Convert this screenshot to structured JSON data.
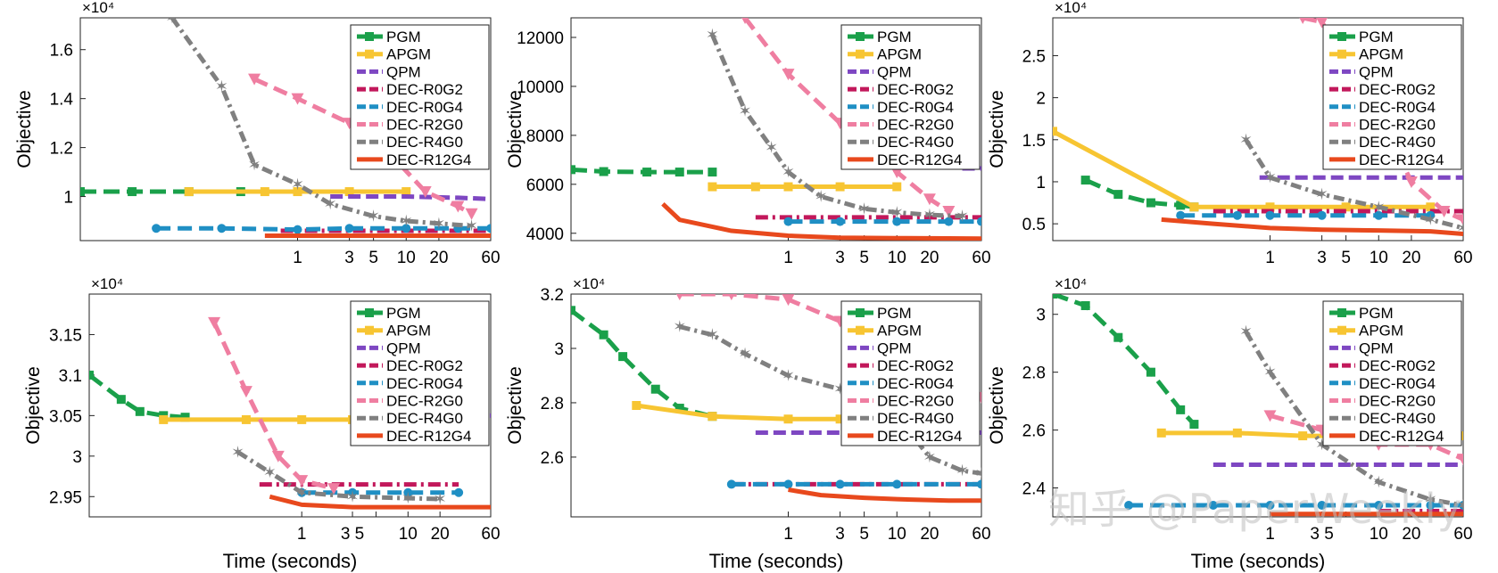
{
  "figure": {
    "watermark": "知乎 @PaperWeekly",
    "legend_entries": [
      "PGM",
      "APGM",
      "QPM",
      "DEC-R0G2",
      "DEC-R0G4",
      "DEC-R2G0",
      "DEC-R4G0",
      "DEC-R12G4"
    ],
    "colors": {
      "PGM": "#1aa04a",
      "APGM": "#f7c532",
      "QPM": "#7e47c2",
      "DEC-R0G2": "#c2185b",
      "DEC-R0G4": "#1f8fc4",
      "DEC-R2G0": "#ef7ea1",
      "DEC-R4G0": "#808080",
      "DEC-R12G4": "#e8491d"
    }
  },
  "chart_data": [
    {
      "type": "line",
      "ylabel": "Objective",
      "xlabel": "",
      "exponent": "×10⁴",
      "xscale": "log",
      "xlim": [
        0.01,
        60
      ],
      "ylim": [
        0.82,
        1.73
      ],
      "yticks": [
        1,
        1.2,
        1.4,
        1.6
      ],
      "xticks": [
        1,
        3,
        5,
        10,
        20,
        60
      ],
      "xtick_labels": [
        "1",
        "3",
        "5",
        "10",
        "20",
        "60"
      ],
      "legend": "top-right",
      "series": [
        {
          "name": "PGM",
          "x": [
            0.01,
            0.03,
            0.1,
            0.3
          ],
          "y": [
            1.02,
            1.02,
            1.02,
            1.02
          ]
        },
        {
          "name": "APGM",
          "x": [
            0.1,
            0.5,
            1,
            3,
            10
          ],
          "y": [
            1.02,
            1.02,
            1.02,
            1.02,
            1.02
          ]
        },
        {
          "name": "QPM",
          "x": [
            2,
            5,
            10,
            30,
            60
          ],
          "y": [
            1.0,
            1.0,
            1.0,
            0.995,
            0.99
          ]
        },
        {
          "name": "DEC-R0G2",
          "x": [
            0.7,
            2,
            5,
            10,
            30,
            60
          ],
          "y": [
            0.86,
            0.86,
            0.86,
            0.86,
            0.86,
            0.86
          ]
        },
        {
          "name": "DEC-R0G4",
          "x": [
            0.05,
            0.2,
            1,
            3,
            10,
            30,
            60
          ],
          "y": [
            0.87,
            0.87,
            0.865,
            0.87,
            0.87,
            0.87,
            0.87
          ]
        },
        {
          "name": "DEC-R2G0",
          "x": [
            0.4,
            1,
            3,
            8,
            15,
            30,
            40
          ],
          "y": [
            1.48,
            1.4,
            1.3,
            1.15,
            1.02,
            0.96,
            0.93
          ]
        },
        {
          "name": "DEC-R4G0",
          "x": [
            0.07,
            0.2,
            0.4,
            1,
            2,
            5,
            10,
            20,
            40
          ],
          "y": [
            1.73,
            1.45,
            1.13,
            1.05,
            0.97,
            0.92,
            0.9,
            0.89,
            0.88
          ]
        },
        {
          "name": "DEC-R12G4",
          "x": [
            0.5,
            1,
            3,
            10,
            30,
            60
          ],
          "y": [
            0.84,
            0.84,
            0.84,
            0.84,
            0.84,
            0.84
          ]
        }
      ]
    },
    {
      "type": "line",
      "ylabel": "Objective",
      "xlabel": "",
      "exponent": "",
      "xscale": "log",
      "xlim": [
        0.01,
        60
      ],
      "ylim": [
        3700,
        12800
      ],
      "yticks": [
        4000,
        6000,
        8000,
        10000,
        12000
      ],
      "xticks": [
        1,
        3,
        5,
        10,
        20,
        60
      ],
      "xtick_labels": [
        "1",
        "3",
        "5",
        "10",
        "20",
        "60"
      ],
      "legend": "top-right",
      "series": [
        {
          "name": "PGM",
          "x": [
            0.01,
            0.02,
            0.05,
            0.1,
            0.2
          ],
          "y": [
            6600,
            6520,
            6500,
            6500,
            6500
          ]
        },
        {
          "name": "APGM",
          "x": [
            0.2,
            0.5,
            1,
            3,
            10
          ],
          "y": [
            5900,
            5900,
            5900,
            5900,
            5900
          ]
        },
        {
          "name": "QPM",
          "x": [
            40,
            60
          ],
          "y": [
            6650,
            6650
          ]
        },
        {
          "name": "DEC-R0G2",
          "x": [
            0.5,
            1,
            3,
            10,
            30,
            60
          ],
          "y": [
            4650,
            4650,
            4650,
            4650,
            4650,
            4650
          ]
        },
        {
          "name": "DEC-R0G4",
          "x": [
            1,
            3,
            10,
            30,
            60
          ],
          "y": [
            4480,
            4480,
            4480,
            4480,
            4480
          ]
        },
        {
          "name": "DEC-R2G0",
          "x": [
            0.4,
            1,
            3,
            10,
            20,
            30
          ],
          "y": [
            12800,
            10500,
            8500,
            6500,
            5400,
            4900
          ]
        },
        {
          "name": "DEC-R4G0",
          "x": [
            0.2,
            0.4,
            0.7,
            1,
            2,
            5,
            10,
            20,
            40
          ],
          "y": [
            12100,
            9000,
            7500,
            6500,
            5500,
            5000,
            4850,
            4750,
            4700
          ]
        },
        {
          "name": "DEC-R12G4",
          "x": [
            0.07,
            0.1,
            0.3,
            1,
            3,
            10,
            30,
            60
          ],
          "y": [
            5200,
            4550,
            4100,
            3900,
            3820,
            3800,
            3790,
            3780
          ]
        }
      ]
    },
    {
      "type": "line",
      "ylabel": "Objective",
      "xlabel": "",
      "exponent": "×10⁴",
      "xscale": "log",
      "xlim": [
        0.01,
        60
      ],
      "ylim": [
        0.3,
        2.95
      ],
      "yticks": [
        0.5,
        1,
        1.5,
        2,
        2.5
      ],
      "xticks": [
        1,
        3,
        5,
        10,
        20,
        60
      ],
      "xtick_labels": [
        "1",
        "3",
        "5",
        "10",
        "20",
        "60"
      ],
      "legend": "top-right",
      "series": [
        {
          "name": "PGM",
          "x": [
            0.02,
            0.04,
            0.08,
            0.15,
            0.2
          ],
          "y": [
            1.02,
            0.85,
            0.75,
            0.72,
            0.7
          ]
        },
        {
          "name": "APGM",
          "x": [
            0.01,
            0.2,
            1,
            5,
            30
          ],
          "y": [
            1.6,
            0.7,
            0.7,
            0.7,
            0.7
          ]
        },
        {
          "name": "QPM",
          "x": [
            0.8,
            3,
            10,
            30,
            60
          ],
          "y": [
            1.05,
            1.05,
            1.05,
            1.05,
            1.05
          ]
        },
        {
          "name": "DEC-R0G2",
          "x": [
            0.3,
            1,
            3,
            10,
            30,
            60
          ],
          "y": [
            0.65,
            0.65,
            0.65,
            0.65,
            0.65,
            0.65
          ]
        },
        {
          "name": "DEC-R0G4",
          "x": [
            0.15,
            0.5,
            1,
            3,
            10,
            30
          ],
          "y": [
            0.6,
            0.6,
            0.6,
            0.6,
            0.6,
            0.6
          ]
        },
        {
          "name": "DEC-R2G0",
          "x": [
            2,
            3,
            10,
            20,
            40,
            60
          ],
          "y": [
            2.95,
            2.9,
            1.8,
            1.0,
            0.65,
            0.55
          ]
        },
        {
          "name": "DEC-R4G0",
          "x": [
            0.6,
            1,
            3,
            10,
            30,
            60
          ],
          "y": [
            1.5,
            1.05,
            0.85,
            0.7,
            0.55,
            0.45
          ]
        },
        {
          "name": "DEC-R12G4",
          "x": [
            0.1,
            0.3,
            1,
            3,
            10,
            30,
            60
          ],
          "y": [
            0.55,
            0.5,
            0.45,
            0.43,
            0.42,
            0.41,
            0.38
          ]
        }
      ]
    },
    {
      "type": "line",
      "ylabel": "Objective",
      "xlabel": "Time (seconds)",
      "exponent": "×10⁴",
      "xscale": "log",
      "xlim": [
        0.01,
        60
      ],
      "ylim": [
        2.925,
        3.2
      ],
      "yticks": [
        2.95,
        3,
        3.05,
        3.1,
        3.15
      ],
      "xticks": [
        1,
        3,
        5,
        10,
        20,
        60
      ],
      "xtick_labels": [
        "1",
        "3 5",
        "",
        "10",
        "20",
        "60"
      ],
      "legend": "top-right",
      "series": [
        {
          "name": "PGM",
          "x": [
            0.01,
            0.02,
            0.03,
            0.05,
            0.08
          ],
          "y": [
            3.1,
            3.07,
            3.055,
            3.05,
            3.048
          ]
        },
        {
          "name": "APGM",
          "x": [
            0.05,
            0.3,
            1,
            3,
            10
          ],
          "y": [
            3.045,
            3.045,
            3.045,
            3.045,
            3.045
          ]
        },
        {
          "name": "QPM",
          "x": [
            40,
            60
          ],
          "y": [
            3.05,
            3.05
          ]
        },
        {
          "name": "DEC-R0G2",
          "x": [
            0.4,
            1,
            3,
            10,
            30
          ],
          "y": [
            2.965,
            2.965,
            2.965,
            2.965,
            2.965
          ]
        },
        {
          "name": "DEC-R0G4",
          "x": [
            1,
            3,
            10,
            30
          ],
          "y": [
            2.955,
            2.955,
            2.955,
            2.955
          ]
        },
        {
          "name": "DEC-R2G0",
          "x": [
            0.15,
            0.3,
            0.6,
            1,
            2
          ],
          "y": [
            3.165,
            3.08,
            3.0,
            2.97,
            2.96
          ]
        },
        {
          "name": "DEC-R4G0",
          "x": [
            0.25,
            0.5,
            1,
            3,
            10,
            20
          ],
          "y": [
            3.005,
            2.98,
            2.955,
            2.95,
            2.948,
            2.947
          ]
        },
        {
          "name": "DEC-R12G4",
          "x": [
            0.5,
            1,
            3,
            10,
            30,
            60
          ],
          "y": [
            2.95,
            2.94,
            2.937,
            2.937,
            2.937,
            2.937
          ]
        }
      ]
    },
    {
      "type": "line",
      "ylabel": "Objective",
      "xlabel": "Time (seconds)",
      "exponent": "×10⁴",
      "xscale": "log",
      "xlim": [
        0.01,
        60
      ],
      "ylim": [
        2.38,
        3.2
      ],
      "yticks": [
        2.6,
        2.8,
        3,
        3.2
      ],
      "xticks": [
        1,
        3,
        5,
        10,
        20,
        60
      ],
      "xtick_labels": [
        "1",
        "3",
        "5",
        "10",
        "20",
        "60"
      ],
      "legend": "top-right",
      "series": [
        {
          "name": "PGM",
          "x": [
            0.01,
            0.02,
            0.03,
            0.06,
            0.1,
            0.2
          ],
          "y": [
            3.14,
            3.05,
            2.97,
            2.85,
            2.78,
            2.75
          ]
        },
        {
          "name": "APGM",
          "x": [
            0.04,
            0.2,
            1,
            3,
            10
          ],
          "y": [
            2.79,
            2.75,
            2.74,
            2.74,
            2.74
          ]
        },
        {
          "name": "QPM",
          "x": [
            0.5,
            2,
            10,
            60
          ],
          "y": [
            2.69,
            2.69,
            2.69,
            2.69
          ]
        },
        {
          "name": "DEC-R0G2",
          "x": [
            0.3,
            1,
            3,
            10,
            60
          ],
          "y": [
            2.5,
            2.5,
            2.5,
            2.5,
            2.5
          ]
        },
        {
          "name": "DEC-R0G4",
          "x": [
            0.3,
            1,
            3,
            10,
            60
          ],
          "y": [
            2.5,
            2.5,
            2.5,
            2.5,
            2.5
          ]
        },
        {
          "name": "DEC-R2G0",
          "x": [
            0.1,
            0.3,
            1,
            3,
            10,
            30,
            60
          ],
          "y": [
            3.2,
            3.2,
            3.18,
            3.1,
            3.0,
            2.85,
            2.82
          ]
        },
        {
          "name": "DEC-R4G0",
          "x": [
            0.1,
            0.2,
            0.4,
            1,
            3,
            10,
            20,
            40,
            60
          ],
          "y": [
            3.08,
            3.05,
            2.98,
            2.9,
            2.85,
            2.75,
            2.6,
            2.55,
            2.54
          ]
        },
        {
          "name": "DEC-R12G4",
          "x": [
            1,
            2,
            5,
            10,
            30,
            60
          ],
          "y": [
            2.48,
            2.46,
            2.45,
            2.445,
            2.44,
            2.44
          ]
        }
      ]
    },
    {
      "type": "line",
      "ylabel": "Objective",
      "xlabel": "Time (seconds)",
      "exponent": "×10⁴",
      "xscale": "log",
      "xlim": [
        0.01,
        60
      ],
      "ylim": [
        2.3,
        3.07
      ],
      "yticks": [
        2.4,
        2.6,
        2.8,
        3
      ],
      "xticks": [
        1,
        3,
        5,
        10,
        20,
        60
      ],
      "xtick_labels": [
        "1",
        "3 5",
        "",
        "10",
        "20",
        "60"
      ],
      "legend": "top-right",
      "series": [
        {
          "name": "PGM",
          "x": [
            0.01,
            0.02,
            0.04,
            0.08,
            0.15,
            0.2
          ],
          "y": [
            3.07,
            3.03,
            2.92,
            2.8,
            2.67,
            2.62
          ]
        },
        {
          "name": "APGM",
          "x": [
            0.1,
            0.5,
            2,
            10,
            60
          ],
          "y": [
            2.59,
            2.59,
            2.58,
            2.58,
            2.58
          ]
        },
        {
          "name": "QPM",
          "x": [
            0.3,
            1,
            3,
            10,
            60
          ],
          "y": [
            2.48,
            2.48,
            2.48,
            2.48,
            2.48
          ]
        },
        {
          "name": "DEC-R0G2",
          "x": [
            10,
            30,
            60
          ],
          "y": [
            2.32,
            2.32,
            2.32
          ]
        },
        {
          "name": "DEC-R0G4",
          "x": [
            0.05,
            0.3,
            1,
            3,
            10,
            30,
            60
          ],
          "y": [
            2.34,
            2.34,
            2.34,
            2.34,
            2.34,
            2.34,
            2.34
          ]
        },
        {
          "name": "DEC-R2G0",
          "x": [
            1,
            3,
            10,
            30,
            60
          ],
          "y": [
            2.65,
            2.6,
            2.55,
            2.55,
            2.5
          ]
        },
        {
          "name": "DEC-R4G0",
          "x": [
            0.6,
            1,
            3,
            10,
            30,
            60
          ],
          "y": [
            2.94,
            2.8,
            2.55,
            2.42,
            2.36,
            2.34
          ]
        },
        {
          "name": "DEC-R12G4",
          "x": [
            1,
            3,
            10,
            30,
            60
          ],
          "y": [
            2.31,
            2.31,
            2.31,
            2.31,
            2.31
          ]
        }
      ]
    }
  ]
}
